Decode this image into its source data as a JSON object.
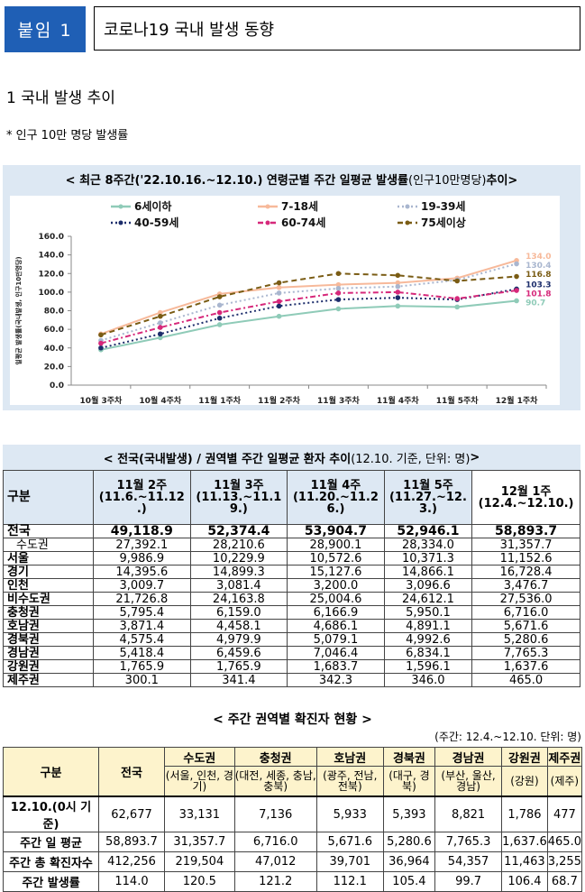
{
  "header": {
    "badge": "붙임 1",
    "title": "코로나19 국내 발생 동향"
  },
  "section1": {
    "heading": "1  국내 발생 추이",
    "note": "* 인구 10만 명당 발생률"
  },
  "chart_banner": {
    "bold": "< 최근 8주간('22.10.16.~12.10.) 연령군별 주간 일평균 발생률",
    "normal": "(인구10만명당)",
    "suffix": " 추이>"
  },
  "chart_data": {
    "type": "line",
    "ylabel": "일평균 발생률(국내발생, 인구10만명당)",
    "ylim": [
      0,
      160
    ],
    "yticks": [
      "0.0",
      "20.0",
      "40.0",
      "60.0",
      "80.0",
      "100.0",
      "120.0",
      "140.0",
      "160.0"
    ],
    "categories": [
      "10월 3주차",
      "10월 4주차",
      "11월 1주차",
      "11월 2주차",
      "11월 3주차",
      "11월 4주차",
      "11월 5주차",
      "12월 1주차"
    ],
    "series": [
      {
        "name": "6세이하",
        "color": "#8fcbb8",
        "dash": "solid",
        "values": [
          38,
          51,
          65,
          74,
          82,
          85,
          84,
          90.7
        ],
        "label": "90.7"
      },
      {
        "name": "7-18세",
        "color": "#f7b99a",
        "dash": "solid",
        "values": [
          55,
          78,
          98,
          105,
          108,
          110,
          115,
          134.0
        ],
        "label": "134.0"
      },
      {
        "name": "19-39세",
        "color": "#a9b6cf",
        "dash": "dot",
        "values": [
          48,
          67,
          86,
          99,
          104,
          106,
          113,
          130.4
        ],
        "label": "130.4"
      },
      {
        "name": "40-59세",
        "color": "#1c2d6b",
        "dash": "dot",
        "values": [
          40,
          55,
          72,
          85,
          92,
          94,
          92,
          103.3
        ],
        "label": "103.3"
      },
      {
        "name": "60-74세",
        "color": "#d6287a",
        "dash": "dashdot",
        "values": [
          45,
          62,
          78,
          90,
          99,
          100,
          93,
          101.8
        ],
        "label": "101.8"
      },
      {
        "name": "75세이상",
        "color": "#7a5c14",
        "dash": "dash",
        "values": [
          54,
          74,
          95,
          110,
          120,
          118,
          112,
          116.8
        ],
        "label": "116.8"
      }
    ]
  },
  "table1": {
    "banner_bold": "< 전국(국내발생) / 권역별 주간 일평균 환자 추이 ",
    "banner_normal": "(12.10. 기준, 단위: 명)",
    "banner_suffix": " >",
    "corner": "구분",
    "headers": [
      [
        "11월 2주",
        "(11.6.~11.12",
        ".)"
      ],
      [
        "11월 3주",
        "(11.13.~11.1",
        "9.)"
      ],
      [
        "11월 4주",
        "(11.20.~11.2",
        "6.)"
      ],
      [
        "11월 5주",
        "(11.27.~12.",
        "3.)"
      ],
      [
        "12월 1주",
        "(12.4.~12.10.)",
        ""
      ]
    ],
    "rows": [
      {
        "label": "전국",
        "kind": "tot",
        "values": [
          "49,118.9",
          "52,374.4",
          "53,904.7",
          "52,946.1",
          "58,893.7"
        ]
      },
      {
        "label": "수도권",
        "kind": "sub",
        "values": [
          "27,392.1",
          "28,210.6",
          "28,900.1",
          "28,334.0",
          "31,357.7"
        ]
      },
      {
        "label": "서울",
        "kind": "b",
        "values": [
          "9,986.9",
          "10,229.9",
          "10,572.6",
          "10,371.3",
          "11,152.6"
        ]
      },
      {
        "label": "경기",
        "kind": "b",
        "values": [
          "14,395.6",
          "14,899.3",
          "15,127.6",
          "14,866.1",
          "16,728.4"
        ]
      },
      {
        "label": "인천",
        "kind": "b",
        "values": [
          "3,009.7",
          "3,081.4",
          "3,200.0",
          "3,096.6",
          "3,476.7"
        ]
      },
      {
        "label": "비수도권",
        "kind": "b",
        "values": [
          "21,726.8",
          "24,163.8",
          "25,004.6",
          "24,612.1",
          "27,536.0"
        ]
      },
      {
        "label": "충청권",
        "kind": "b",
        "values": [
          "5,795.4",
          "6,159.0",
          "6,166.9",
          "5,950.1",
          "6,716.0"
        ]
      },
      {
        "label": "호남권",
        "kind": "b",
        "values": [
          "3,871.4",
          "4,458.1",
          "4,686.1",
          "4,891.1",
          "5,671.6"
        ]
      },
      {
        "label": "경북권",
        "kind": "b",
        "values": [
          "4,575.4",
          "4,979.9",
          "5,079.1",
          "4,992.6",
          "5,280.6"
        ]
      },
      {
        "label": "경남권",
        "kind": "b",
        "values": [
          "5,418.4",
          "6,459.6",
          "7,046.4",
          "6,834.1",
          "7,765.3"
        ]
      },
      {
        "label": "강원권",
        "kind": "b",
        "values": [
          "1,765.9",
          "1,765.9",
          "1,683.7",
          "1,596.1",
          "1,637.6"
        ]
      },
      {
        "label": "제주권",
        "kind": "b",
        "values": [
          "300.1",
          "341.4",
          "342.3",
          "346.0",
          "465.0"
        ]
      }
    ]
  },
  "table2": {
    "title": "< 주간 권역별 확진자 현황 >",
    "unit": "(주간: 12.4.~12.10. 단위: 명)",
    "corner": "구분",
    "national": "전국",
    "regions": [
      {
        "name": "수도권",
        "sub": "(서울, 인천, 경기)"
      },
      {
        "name": "충청권",
        "sub": "(대전, 세종, 충남, 충북)"
      },
      {
        "name": "호남권",
        "sub": "(광주, 전남, 전북)"
      },
      {
        "name": "경북권",
        "sub": "(대구, 경북)"
      },
      {
        "name": "경남권",
        "sub": "(부산, 울산, 경남)"
      },
      {
        "name": "강원권",
        "sub": "(강원)"
      },
      {
        "name": "제주권",
        "sub": "(제주)"
      }
    ],
    "rows": [
      {
        "label": "12.10.(0시 기준)",
        "values": [
          "62,677",
          "33,131",
          "7,136",
          "5,933",
          "5,393",
          "8,821",
          "1,786",
          "477"
        ]
      },
      {
        "label": "주간 일 평균",
        "values": [
          "58,893.7",
          "31,357.7",
          "6,716.0",
          "5,671.6",
          "5,280.6",
          "7,765.3",
          "1,637.6",
          "465.0"
        ]
      },
      {
        "label": "주간 총 확진자수",
        "values": [
          "412,256",
          "219,504",
          "47,012",
          "39,701",
          "36,964",
          "54,357",
          "11,463",
          "3,255"
        ]
      },
      {
        "label": "주간 발생률",
        "values": [
          "114.0",
          "120.5",
          "121.2",
          "112.1",
          "105.4",
          "99.7",
          "106.4",
          "68.7"
        ]
      }
    ]
  }
}
